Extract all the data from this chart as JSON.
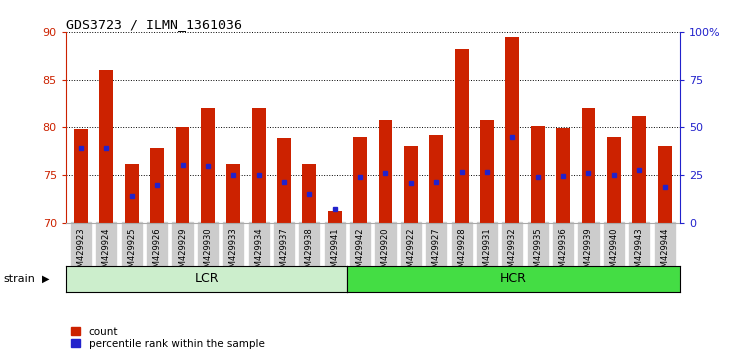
{
  "title": "GDS3723 / ILMN_1361036",
  "ylim_left": [
    70,
    90
  ],
  "ylim_right": [
    0,
    100
  ],
  "yticks_left": [
    70,
    75,
    80,
    85,
    90
  ],
  "yticks_right": [
    0,
    25,
    50,
    75,
    100
  ],
  "yticklabels_right": [
    "0",
    "25",
    "50",
    "75",
    "100%"
  ],
  "bar_bottom": 70,
  "categories": [
    "GSM429923",
    "GSM429924",
    "GSM429925",
    "GSM429926",
    "GSM429929",
    "GSM429930",
    "GSM429933",
    "GSM429934",
    "GSM429937",
    "GSM429938",
    "GSM429941",
    "GSM429942",
    "GSM429920",
    "GSM429922",
    "GSM429927",
    "GSM429928",
    "GSM429931",
    "GSM429932",
    "GSM429935",
    "GSM429936",
    "GSM429939",
    "GSM429940",
    "GSM429943",
    "GSM429944"
  ],
  "bar_values": [
    79.8,
    86.0,
    76.2,
    77.9,
    80.0,
    82.0,
    76.2,
    82.0,
    78.9,
    76.2,
    71.3,
    79.0,
    80.8,
    78.1,
    79.2,
    88.2,
    80.8,
    89.5,
    80.1,
    79.9,
    82.0,
    79.0,
    81.2,
    78.1
  ],
  "percentile_values": [
    77.8,
    77.9,
    72.8,
    74.0,
    76.1,
    76.0,
    75.0,
    75.0,
    74.3,
    73.0,
    71.5,
    74.8,
    75.2,
    74.2,
    74.3,
    75.3,
    75.3,
    79.0,
    74.8,
    74.9,
    75.2,
    75.0,
    75.5,
    73.8
  ],
  "lcr_count": 11,
  "hcr_count": 13,
  "bar_color": "#cc2200",
  "percentile_color": "#2222cc",
  "lcr_facecolor": "#cceecc",
  "hcr_facecolor": "#44dd44",
  "left_axis_color": "#cc2200",
  "right_axis_color": "#2222cc",
  "tick_label_bg": "#cccccc",
  "background_color": "#ffffff"
}
